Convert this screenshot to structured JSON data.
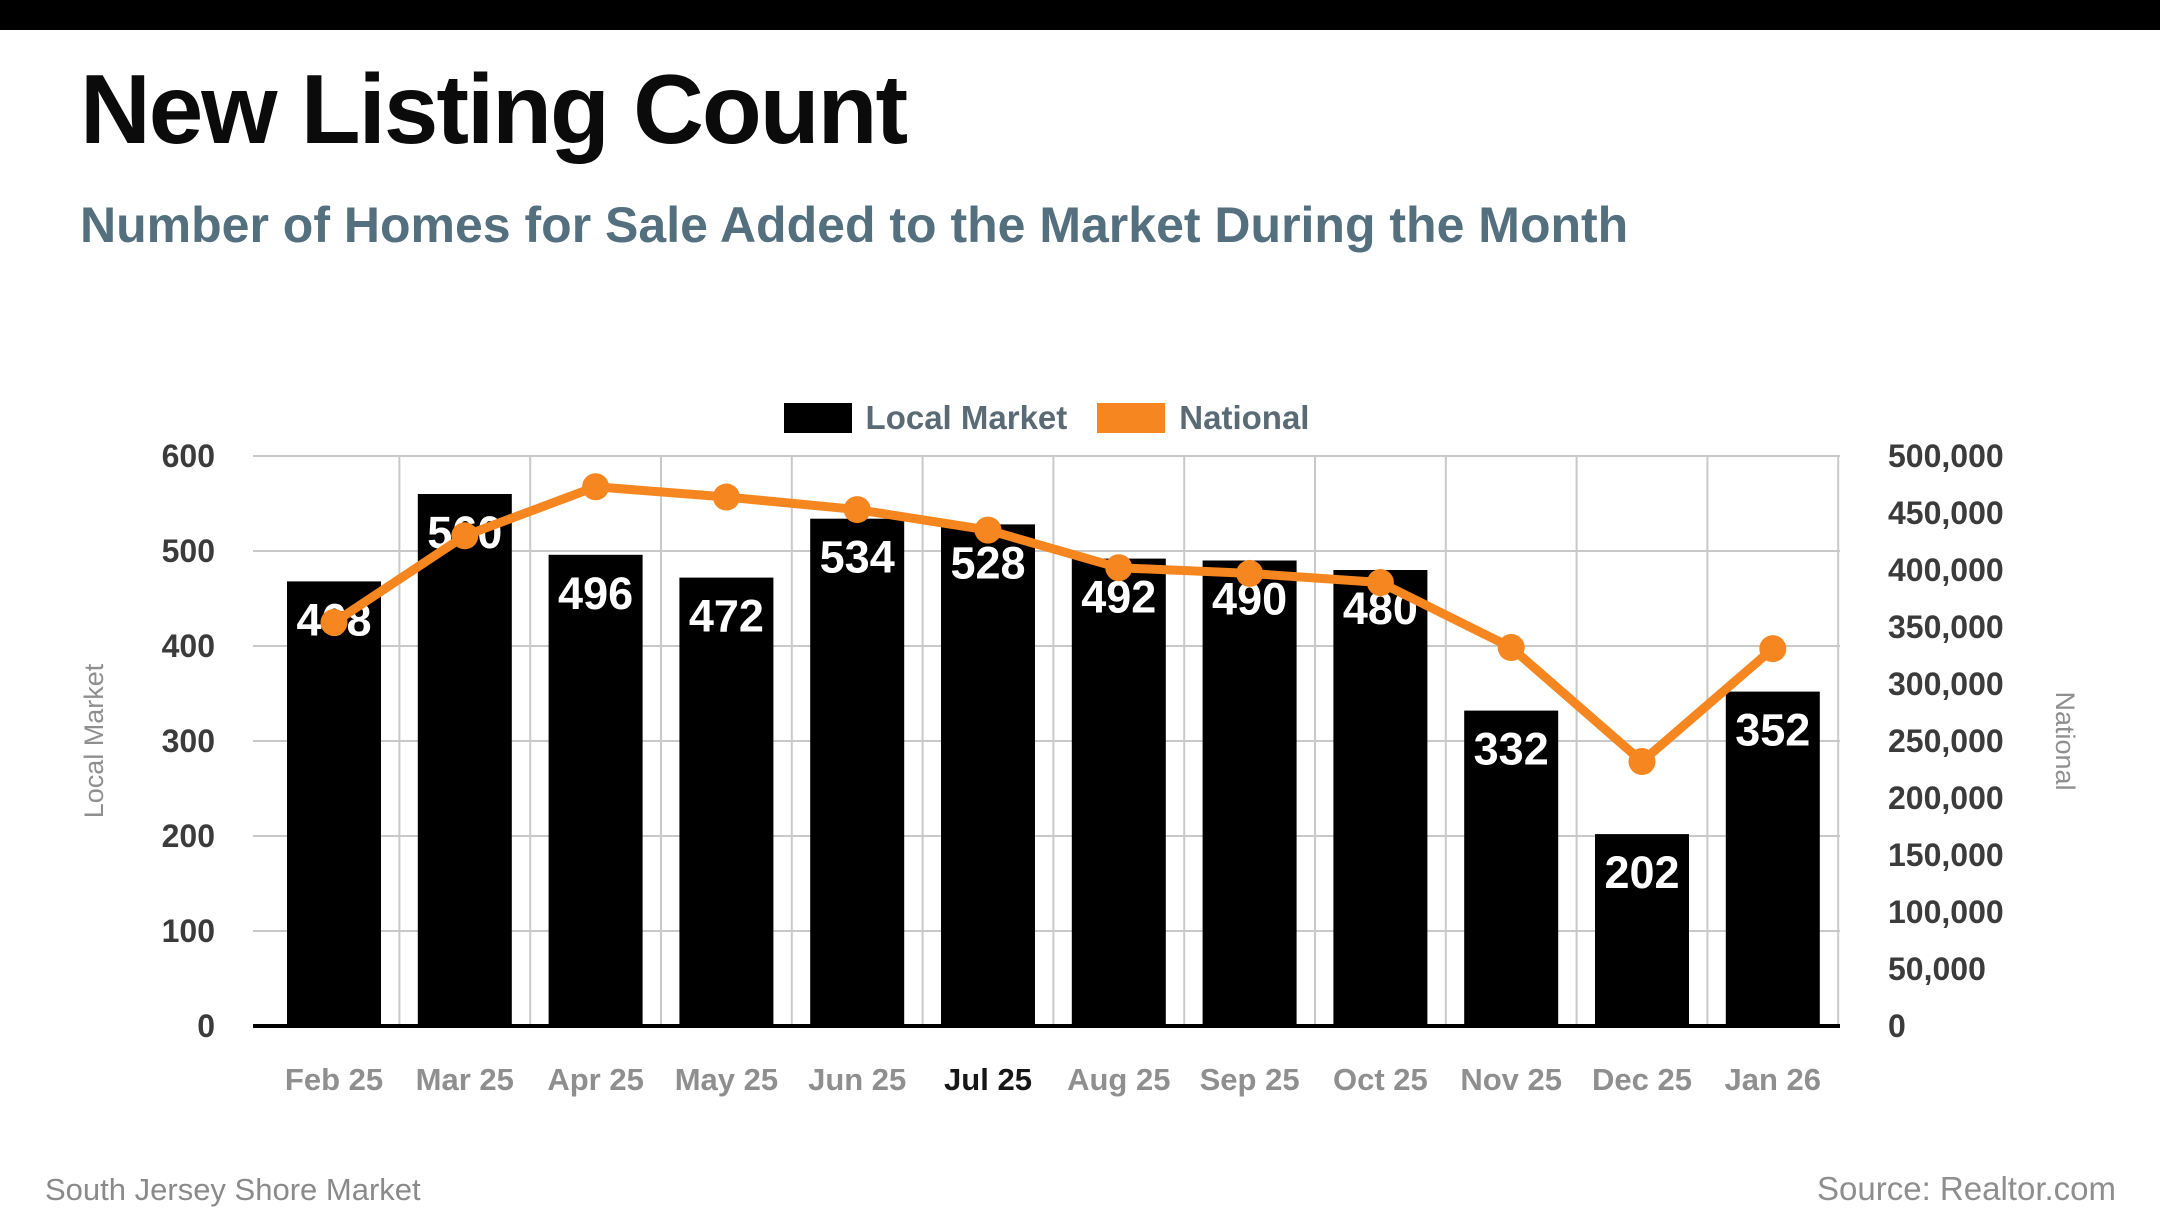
{
  "page": {
    "title": "New Listing Count",
    "subtitle": "Number of Homes for Sale Added to the Market During the Month",
    "footer_left": "South Jersey Shore Market",
    "footer_right": "Source: Realtor.com"
  },
  "legend": {
    "items": [
      {
        "label": "Local Market",
        "color": "#000000"
      },
      {
        "label": "National",
        "color": "#f6861f"
      }
    ]
  },
  "colors": {
    "accent_orange": "#f6861f",
    "bar_black": "#000000",
    "subtitle_slate": "#54707e",
    "gridline_gray": "#c9c9c9",
    "tick_label_gray": "#3b3b3b",
    "month_label_gray": "#8f8f8f",
    "month_label_highlight": "#161616",
    "axis_title_gray": "#8f8f8f"
  },
  "chart_data": {
    "type": "bar",
    "subtype": "bar+line dual axis",
    "categories": [
      "Feb 25",
      "Mar 25",
      "Apr 25",
      "May 25",
      "Jun 25",
      "Jul 25",
      "Aug 25",
      "Sep 25",
      "Oct 25",
      "Nov 25",
      "Dec 25",
      "Jan 26"
    ],
    "highlighted_category": "Jul 25",
    "series": [
      {
        "name": "Local Market",
        "type": "bar",
        "axis": "left",
        "color": "#000000",
        "values": [
          468,
          560,
          496,
          472,
          534,
          528,
          492,
          490,
          480,
          332,
          202,
          352
        ],
        "data_labels": [
          "468",
          "560",
          "496",
          "472",
          "534",
          "528",
          "492",
          "490",
          "480",
          "332",
          "202",
          "352"
        ]
      },
      {
        "name": "National",
        "type": "line",
        "axis": "right",
        "color": "#f6861f",
        "values": [
          354000,
          430000,
          473000,
          464000,
          453000,
          435000,
          402000,
          397000,
          389000,
          332000,
          232000,
          331000
        ]
      }
    ],
    "left_axis": {
      "title": "Local Market",
      "min": 0,
      "max": 600,
      "step": 100,
      "ticks": [
        {
          "v": 0,
          "label": "0"
        },
        {
          "v": 100,
          "label": "100"
        },
        {
          "v": 200,
          "label": "200"
        },
        {
          "v": 300,
          "label": "300"
        },
        {
          "v": 400,
          "label": "400"
        },
        {
          "v": 500,
          "label": "500"
        },
        {
          "v": 600,
          "label": "600"
        }
      ]
    },
    "right_axis": {
      "title": "National",
      "min": 0,
      "max": 500000,
      "step": 50000,
      "ticks": [
        {
          "v": 0,
          "label": "0"
        },
        {
          "v": 50000,
          "label": "50,000"
        },
        {
          "v": 100000,
          "label": "100,000"
        },
        {
          "v": 150000,
          "label": "150,000"
        },
        {
          "v": 200000,
          "label": "200,000"
        },
        {
          "v": 250000,
          "label": "250,000"
        },
        {
          "v": 300000,
          "label": "300,000"
        },
        {
          "v": 350000,
          "label": "350,000"
        },
        {
          "v": 400000,
          "label": "400,000"
        },
        {
          "v": 450000,
          "label": "450,000"
        },
        {
          "v": 500000,
          "label": "500,000"
        }
      ]
    },
    "grid": true,
    "legend_position": "top-center"
  }
}
